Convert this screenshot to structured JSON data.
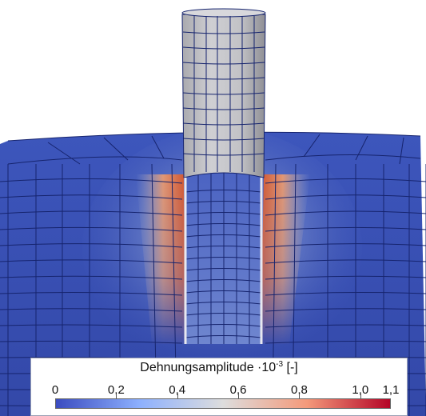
{
  "legend": {
    "title_main": "Dehnungsamplitude ·10",
    "title_exp": "-3",
    "title_unit": " [-]",
    "ticks": [
      "0",
      "0,2",
      "0,4",
      "0,6",
      "0,8",
      "1,0",
      "1,1"
    ],
    "tick_values": [
      0,
      0.2,
      0.4,
      0.6,
      0.8,
      1.0,
      1.1
    ],
    "range": [
      0,
      1.1
    ],
    "colormap": [
      "#3b4cc0",
      "#8db0fe",
      "#dddddd",
      "#f49a7b",
      "#b40426"
    ]
  },
  "colors": {
    "mesh_lines": "#16246e",
    "base_field": "#3b54b8",
    "pin_surface": "#c4c4c8",
    "hot_zone": "#d0603c"
  }
}
